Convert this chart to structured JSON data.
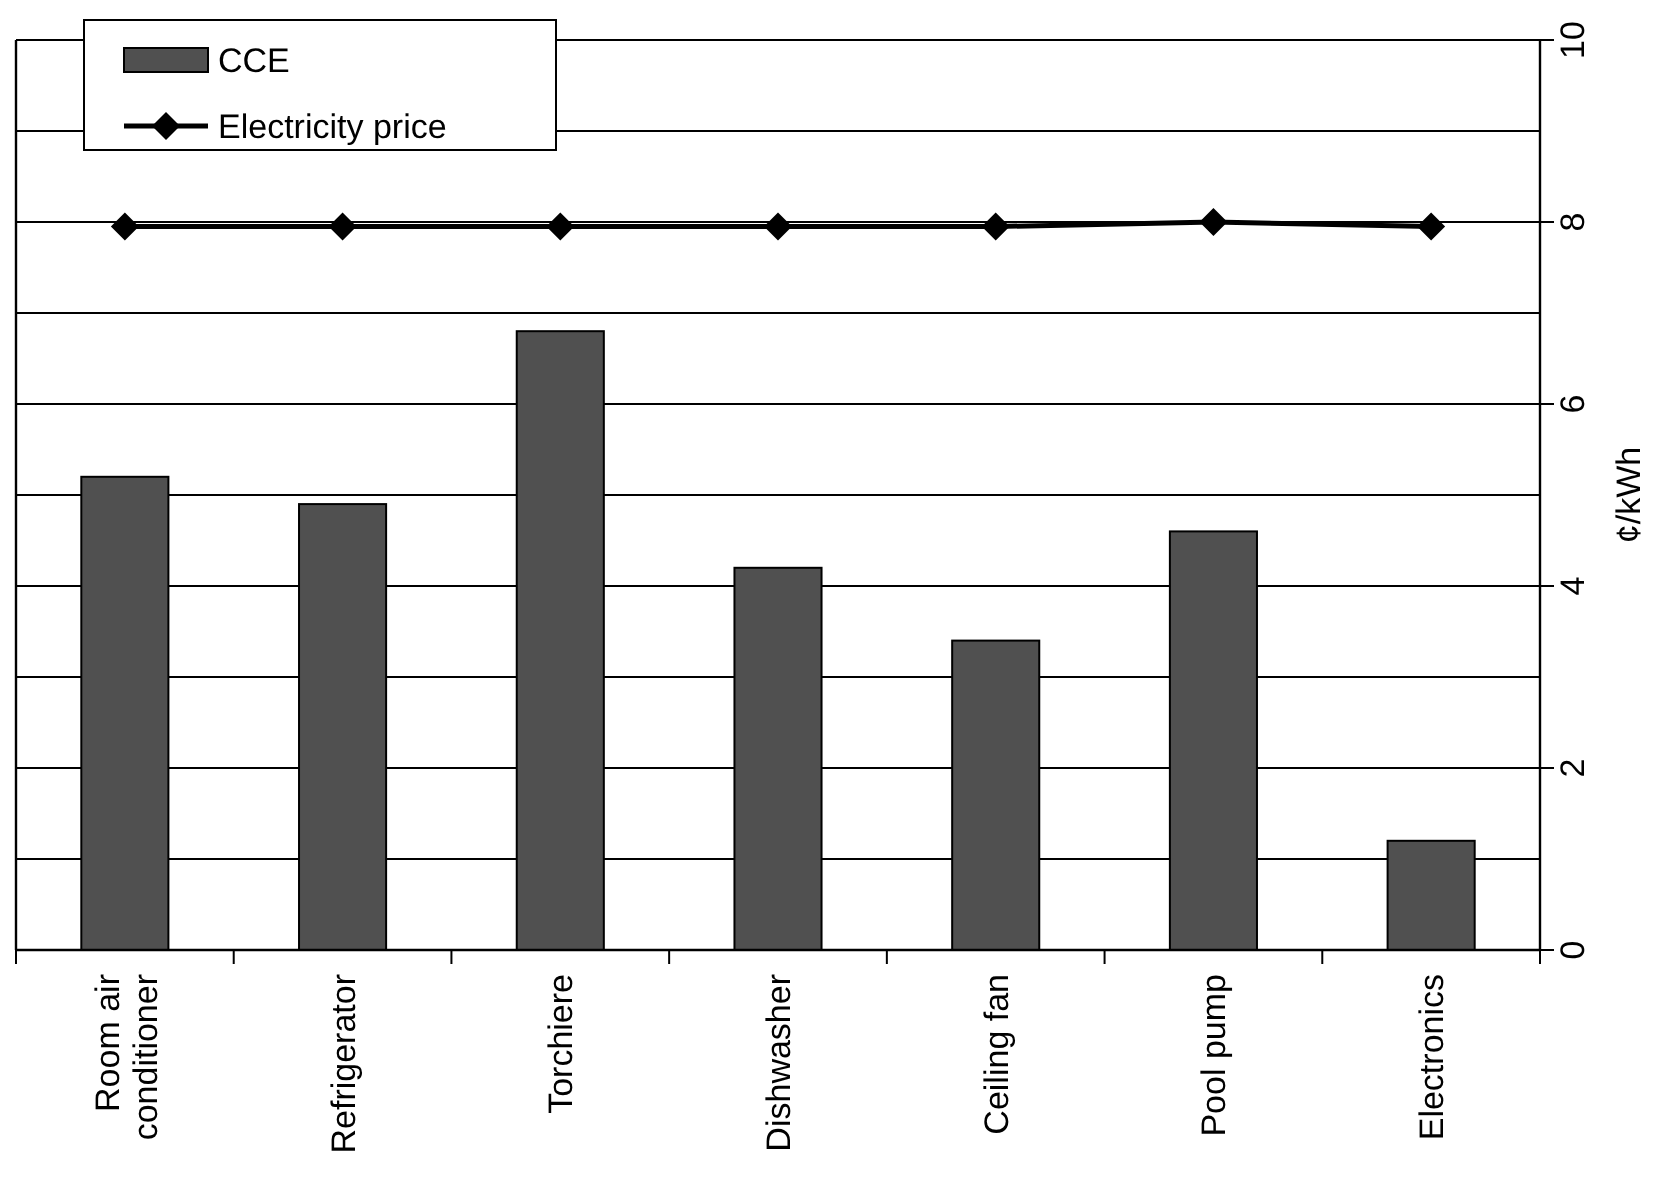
{
  "chart_data": {
    "type": "bar",
    "ylabel": "¢/kWh",
    "categories": [
      "Room air conditioner",
      "Refrigerator",
      "Torchiere",
      "Dishwasher",
      "Ceiling fan",
      "Pool pump",
      "Electronics"
    ],
    "series": [
      {
        "name": "CCE",
        "color": "#505050",
        "values": [
          5.2,
          4.9,
          6.8,
          4.2,
          3.4,
          4.6,
          1.2
        ]
      },
      {
        "name": "Electricity price",
        "type": "line",
        "color": "#000000",
        "marker": "diamond",
        "line_style": "solid",
        "values": [
          7.95,
          7.95,
          7.95,
          7.95,
          7.95,
          8.0,
          7.95
        ]
      }
    ],
    "ylim": [
      0,
      10
    ],
    "yticks": [
      0,
      {
        "value": 1,
        "label": null
      },
      2,
      {
        "value": 3,
        "label": null
      },
      4,
      {
        "value": 5,
        "label": null
      },
      6,
      {
        "value": 7,
        "label": null
      },
      8,
      {
        "value": 9,
        "label": null
      },
      10
    ],
    "grid": "y",
    "legend": "top left"
  }
}
